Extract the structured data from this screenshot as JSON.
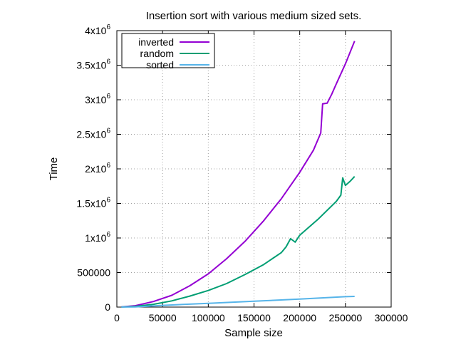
{
  "chart_data": {
    "type": "line",
    "title": "Insertion sort with various medium sized sets.",
    "xlabel": "Sample size",
    "ylabel": "Time",
    "xlim": [
      0,
      300000
    ],
    "ylim": [
      0,
      4000000
    ],
    "x_ticks": [
      0,
      50000,
      100000,
      150000,
      200000,
      250000,
      300000
    ],
    "x_tick_labels": [
      "0",
      "50000",
      "100000",
      "150000",
      "200000",
      "250000",
      "300000"
    ],
    "y_ticks": [
      0,
      500000,
      1000000,
      1500000,
      2000000,
      2500000,
      3000000,
      3500000,
      4000000
    ],
    "y_tick_labels": [
      {
        "base": "0",
        "exp": ""
      },
      {
        "base": "500000",
        "exp": ""
      },
      {
        "base": "1x10",
        "exp": "6"
      },
      {
        "base": "1.5x10",
        "exp": "6"
      },
      {
        "base": "2x10",
        "exp": "6"
      },
      {
        "base": "2.5x10",
        "exp": "6"
      },
      {
        "base": "3x10",
        "exp": "6"
      },
      {
        "base": "3.5x10",
        "exp": "6"
      },
      {
        "base": "4x10",
        "exp": "6"
      }
    ],
    "grid": true,
    "legend_position": "top-left",
    "series": [
      {
        "name": "inverted",
        "color": "#9400d3",
        "x": [
          5000,
          20000,
          40000,
          60000,
          80000,
          100000,
          120000,
          140000,
          160000,
          180000,
          200000,
          215000,
          223000,
          225000,
          230000,
          235000,
          240000,
          250000,
          260000
        ],
        "y": [
          2000,
          20000,
          80000,
          170000,
          310000,
          480000,
          700000,
          950000,
          1240000,
          1570000,
          1950000,
          2270000,
          2520000,
          2940000,
          2950000,
          3080000,
          3230000,
          3520000,
          3850000
        ]
      },
      {
        "name": "random",
        "color": "#009e73",
        "x": [
          5000,
          20000,
          40000,
          60000,
          80000,
          100000,
          120000,
          140000,
          160000,
          180000,
          185000,
          190000,
          195000,
          200000,
          220000,
          240000,
          245000,
          247000,
          250000,
          255000,
          260000
        ],
        "y": [
          1000,
          10000,
          40000,
          90000,
          160000,
          240000,
          340000,
          470000,
          610000,
          790000,
          870000,
          990000,
          940000,
          1040000,
          1270000,
          1530000,
          1620000,
          1870000,
          1760000,
          1820000,
          1890000
        ]
      },
      {
        "name": "sorted",
        "color": "#56b4e9",
        "x": [
          5000,
          20000,
          50000,
          100000,
          150000,
          200000,
          250000,
          260000
        ],
        "y": [
          1000,
          3000,
          25000,
          55000,
          85000,
          115000,
          150000,
          155000
        ]
      }
    ]
  }
}
